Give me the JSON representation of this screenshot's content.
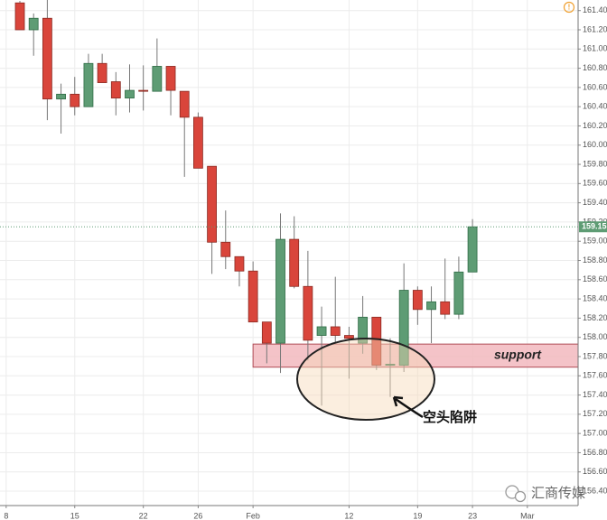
{
  "chart_data": {
    "type": "candlestick",
    "open": [
      161.48,
      161.2,
      161.32,
      160.48,
      160.53,
      160.4,
      160.85,
      160.66,
      160.49,
      160.57,
      160.56,
      160.82,
      160.56,
      160.29,
      159.78,
      158.99,
      158.84,
      158.69,
      158.16,
      157.94,
      159.02,
      158.53,
      158.02,
      158.11,
      158.02,
      157.94,
      158.21,
      157.71,
      157.71,
      158.49,
      158.29,
      158.37,
      158.24,
      158.68
    ],
    "high": [
      161.5,
      161.37,
      161.51,
      160.64,
      160.71,
      160.95,
      160.95,
      160.76,
      160.84,
      160.83,
      161.11,
      160.82,
      160.56,
      160.34,
      159.78,
      159.32,
      158.84,
      158.79,
      158.16,
      159.29,
      159.26,
      158.9,
      158.32,
      158.63,
      158.11,
      158.43,
      158.21,
      157.99,
      158.77,
      158.53,
      158.53,
      158.82,
      158.84,
      159.23
    ],
    "low": [
      161.2,
      160.93,
      160.26,
      160.12,
      160.31,
      160.4,
      160.65,
      160.31,
      160.34,
      160.36,
      160.56,
      160.31,
      159.67,
      159.76,
      158.66,
      158.71,
      158.53,
      158.16,
      157.73,
      157.63,
      158.51,
      157.76,
      157.29,
      157.94,
      157.57,
      157.83,
      157.66,
      157.38,
      157.64,
      158.13,
      157.94,
      158.19,
      158.19,
      158.68
    ],
    "close": [
      161.2,
      161.32,
      160.48,
      160.53,
      160.4,
      160.85,
      160.65,
      160.49,
      160.57,
      160.56,
      160.82,
      160.57,
      160.29,
      159.76,
      158.99,
      158.84,
      158.69,
      158.16,
      157.94,
      159.02,
      158.53,
      157.97,
      158.11,
      158.02,
      157.99,
      158.21,
      157.71,
      157.72,
      158.49,
      158.29,
      158.37,
      158.24,
      158.68,
      159.15
    ],
    "up_color": "#5e9c74",
    "down_color": "#d9453b",
    "xlim": [
      -1.45,
      40.7
    ],
    "xticks": [
      {
        "value": -1,
        "label": "8"
      },
      {
        "value": 4,
        "label": "15"
      },
      {
        "value": 9,
        "label": "22"
      },
      {
        "value": 13,
        "label": "26"
      },
      {
        "value": 17,
        "label": "Feb"
      },
      {
        "value": 24,
        "label": "12"
      },
      {
        "value": 29,
        "label": "19"
      },
      {
        "value": 33,
        "label": "23"
      },
      {
        "value": 37,
        "label": "Mar"
      }
    ],
    "ylim": [
      156.25,
      161.51
    ],
    "yticks": [
      {
        "value": 156.4,
        "label": "156.40"
      },
      {
        "value": 156.6,
        "label": "156.60"
      },
      {
        "value": 156.8,
        "label": "156.80"
      },
      {
        "value": 157,
        "label": "157.00"
      },
      {
        "value": 157.2,
        "label": "157.20"
      },
      {
        "value": 157.4,
        "label": "157.40"
      },
      {
        "value": 157.6,
        "label": "157.60"
      },
      {
        "value": 157.8,
        "label": "157.80"
      },
      {
        "value": 158,
        "label": "158.00"
      },
      {
        "value": 158.2,
        "label": "158.20"
      },
      {
        "value": 158.4,
        "label": "158.40"
      },
      {
        "value": 158.6,
        "label": "158.60"
      },
      {
        "value": 158.8,
        "label": "158.80"
      },
      {
        "value": 159,
        "label": "159.00"
      },
      {
        "value": 159.2,
        "label": "159.20"
      },
      {
        "value": 159.4,
        "label": "159.40"
      },
      {
        "value": 159.6,
        "label": "159.60"
      },
      {
        "value": 159.8,
        "label": "159.80"
      },
      {
        "value": 160,
        "label": "160.00"
      },
      {
        "value": 160.2,
        "label": "160.20"
      },
      {
        "value": 160.4,
        "label": "160.40"
      },
      {
        "value": 160.6,
        "label": "160.60"
      },
      {
        "value": 160.8,
        "label": "160.80"
      },
      {
        "value": 161,
        "label": "161.00"
      },
      {
        "value": 161.2,
        "label": "161.20"
      },
      {
        "value": 161.4,
        "label": "161.40"
      }
    ],
    "grid": true,
    "annotations": [
      {
        "text": "support",
        "range": [
          157.69,
          157.93
        ]
      },
      {
        "text": "空头陷阱"
      }
    ],
    "watermark": "汇商传媒"
  }
}
